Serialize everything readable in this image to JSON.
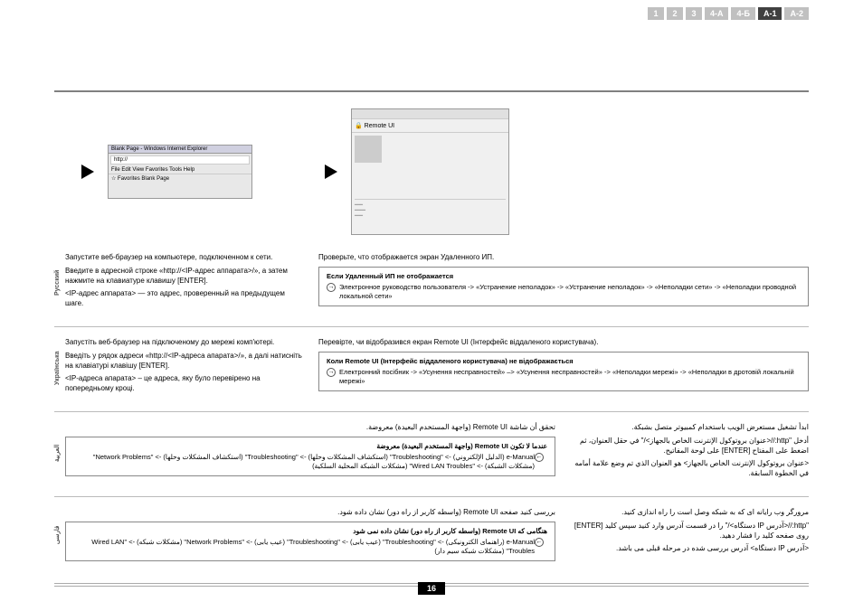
{
  "tabs": [
    {
      "label": "1",
      "active": false
    },
    {
      "label": "2",
      "active": false
    },
    {
      "label": "3",
      "active": false
    },
    {
      "label": "4-А",
      "active": false
    },
    {
      "label": "4-Б",
      "active": false
    },
    {
      "label": "A-1",
      "active": true
    },
    {
      "label": "A-2",
      "active": false
    }
  ],
  "browser": {
    "title": "Blank Page - Windows Internet Explorer",
    "url": "http://",
    "menu": "File   Edit   View   Favorites   Tools   Help",
    "fav": "☆ Favorites    Blank Page"
  },
  "remoteui": {
    "title": "🔒 Remote UI"
  },
  "russian": {
    "lang": "Русский",
    "l1": "Запустите веб-браузер на компьютере, подключенном к сети.",
    "l2": "Введите в адресной строке «http://<IP-адрес аппарата>/», а затем нажмите на клавиатуре клавишу [ENTER].",
    "l3": "<IP-адрес аппарата> — это адрес, проверенный на предыдущем шаге.",
    "r1": "Проверьте, что отображается экран Удаленного ИП.",
    "note_title": "Если Удаленный ИП не отображается",
    "note_body": "Электронное руководство пользователя -> «Устранение неполадок» -> «Устранение неполадок» -> «Неполадки сети» -> «Неполадки проводной локальной сети»"
  },
  "ukrainian": {
    "lang": "Українська",
    "l1": "Запустіть веб-браузер на підключеному до мережі комп'ютері.",
    "l2": "Введіть у рядок адреси «http://<IP-адреса апарата>/», а далі натисніть на клавіатурі клавішу [ENTER].",
    "l3": "<IP-адреса апарата> – це адреса, яку було перевірено на попередньому кроці.",
    "r1": "Перевірте, чи відобразився екран Remote UI (Інтерфейс віддаленого користувача).",
    "note_title": "Коли Remote UI (Інтерфейс віддаленого користувача) не відображається",
    "note_body": "Електронний посібник -> «Усунення несправностей» –> «Усунення несправностей» -> «Неполадки мережі» -> «Неполадки в дротовій локальній мережі»"
  },
  "arabic": {
    "lang": "العربية",
    "l1": "ابدأ تشغيل مستعرض الويب باستخدام كمبيوتر متصل بشبكة.",
    "l2": "أدخل \"http://<عنوان بروتوكول الإنترنت الخاص بالجهاز>/\" في حقل العنوان، ثم اضغط على المفتاح [ENTER] على لوحة المفاتيح.",
    "l3": "<عنوان بروتوكول الإنترنت الخاص بالجهاز> هو العنوان الذي تم وضع علامة أمامه في الخطوة السابقة.",
    "r1": "تحقق أن شاشة Remote UI (واجهة المستخدم البعيدة) معروضة.",
    "note_title": "عندما لا تكون Remote UI (واجهة المستخدم البعيدة) معروضة",
    "note_body": "e-Manual (الدليل الإلكتروني) -> \"Troubleshooting\" (استكشاف المشكلات وحلها) -> \"Troubleshooting\" (استكشاف المشكلات وحلها) -> \"Network Problems\" (مشكلات الشبكة) -> \"Wired LAN Troubles\" (مشكلات الشبكة المحلية السلكية)"
  },
  "farsi": {
    "lang": "فارسی",
    "l1": "مرورگر وب رایانه ای که به شبکه وصل است را راه اندازی کنید.",
    "l2": "\"http://<آدرس IP دستگاه>/\" را در قسمت آدرس وارد کنید سپس کلید [ENTER] روی صفحه کلید را فشار دهید.",
    "l3": "<آدرس IP دستگاه> آدرس بررسی شده در مرحله قبلی می باشد.",
    "r1": "بررسی کنید صفحه Remote UI (واسطه کاربر از راه دور) نشان داده شود.",
    "note_title": "هنگامی که Remote UI (واسطه کاربر از راه دور) نشان داده نمی شود",
    "note_body": "e-Manual (راهنمای الکترونیکی) -> \"Troubleshooting\" (عیب یابی) -> \"Troubleshooting\" (عیب یابی) -> \"Network Problems\" (مشکلات شبکه) -> \"Wired LAN Troubles\" (مشکلات شبکه سیم دار)"
  },
  "page_number": "16"
}
